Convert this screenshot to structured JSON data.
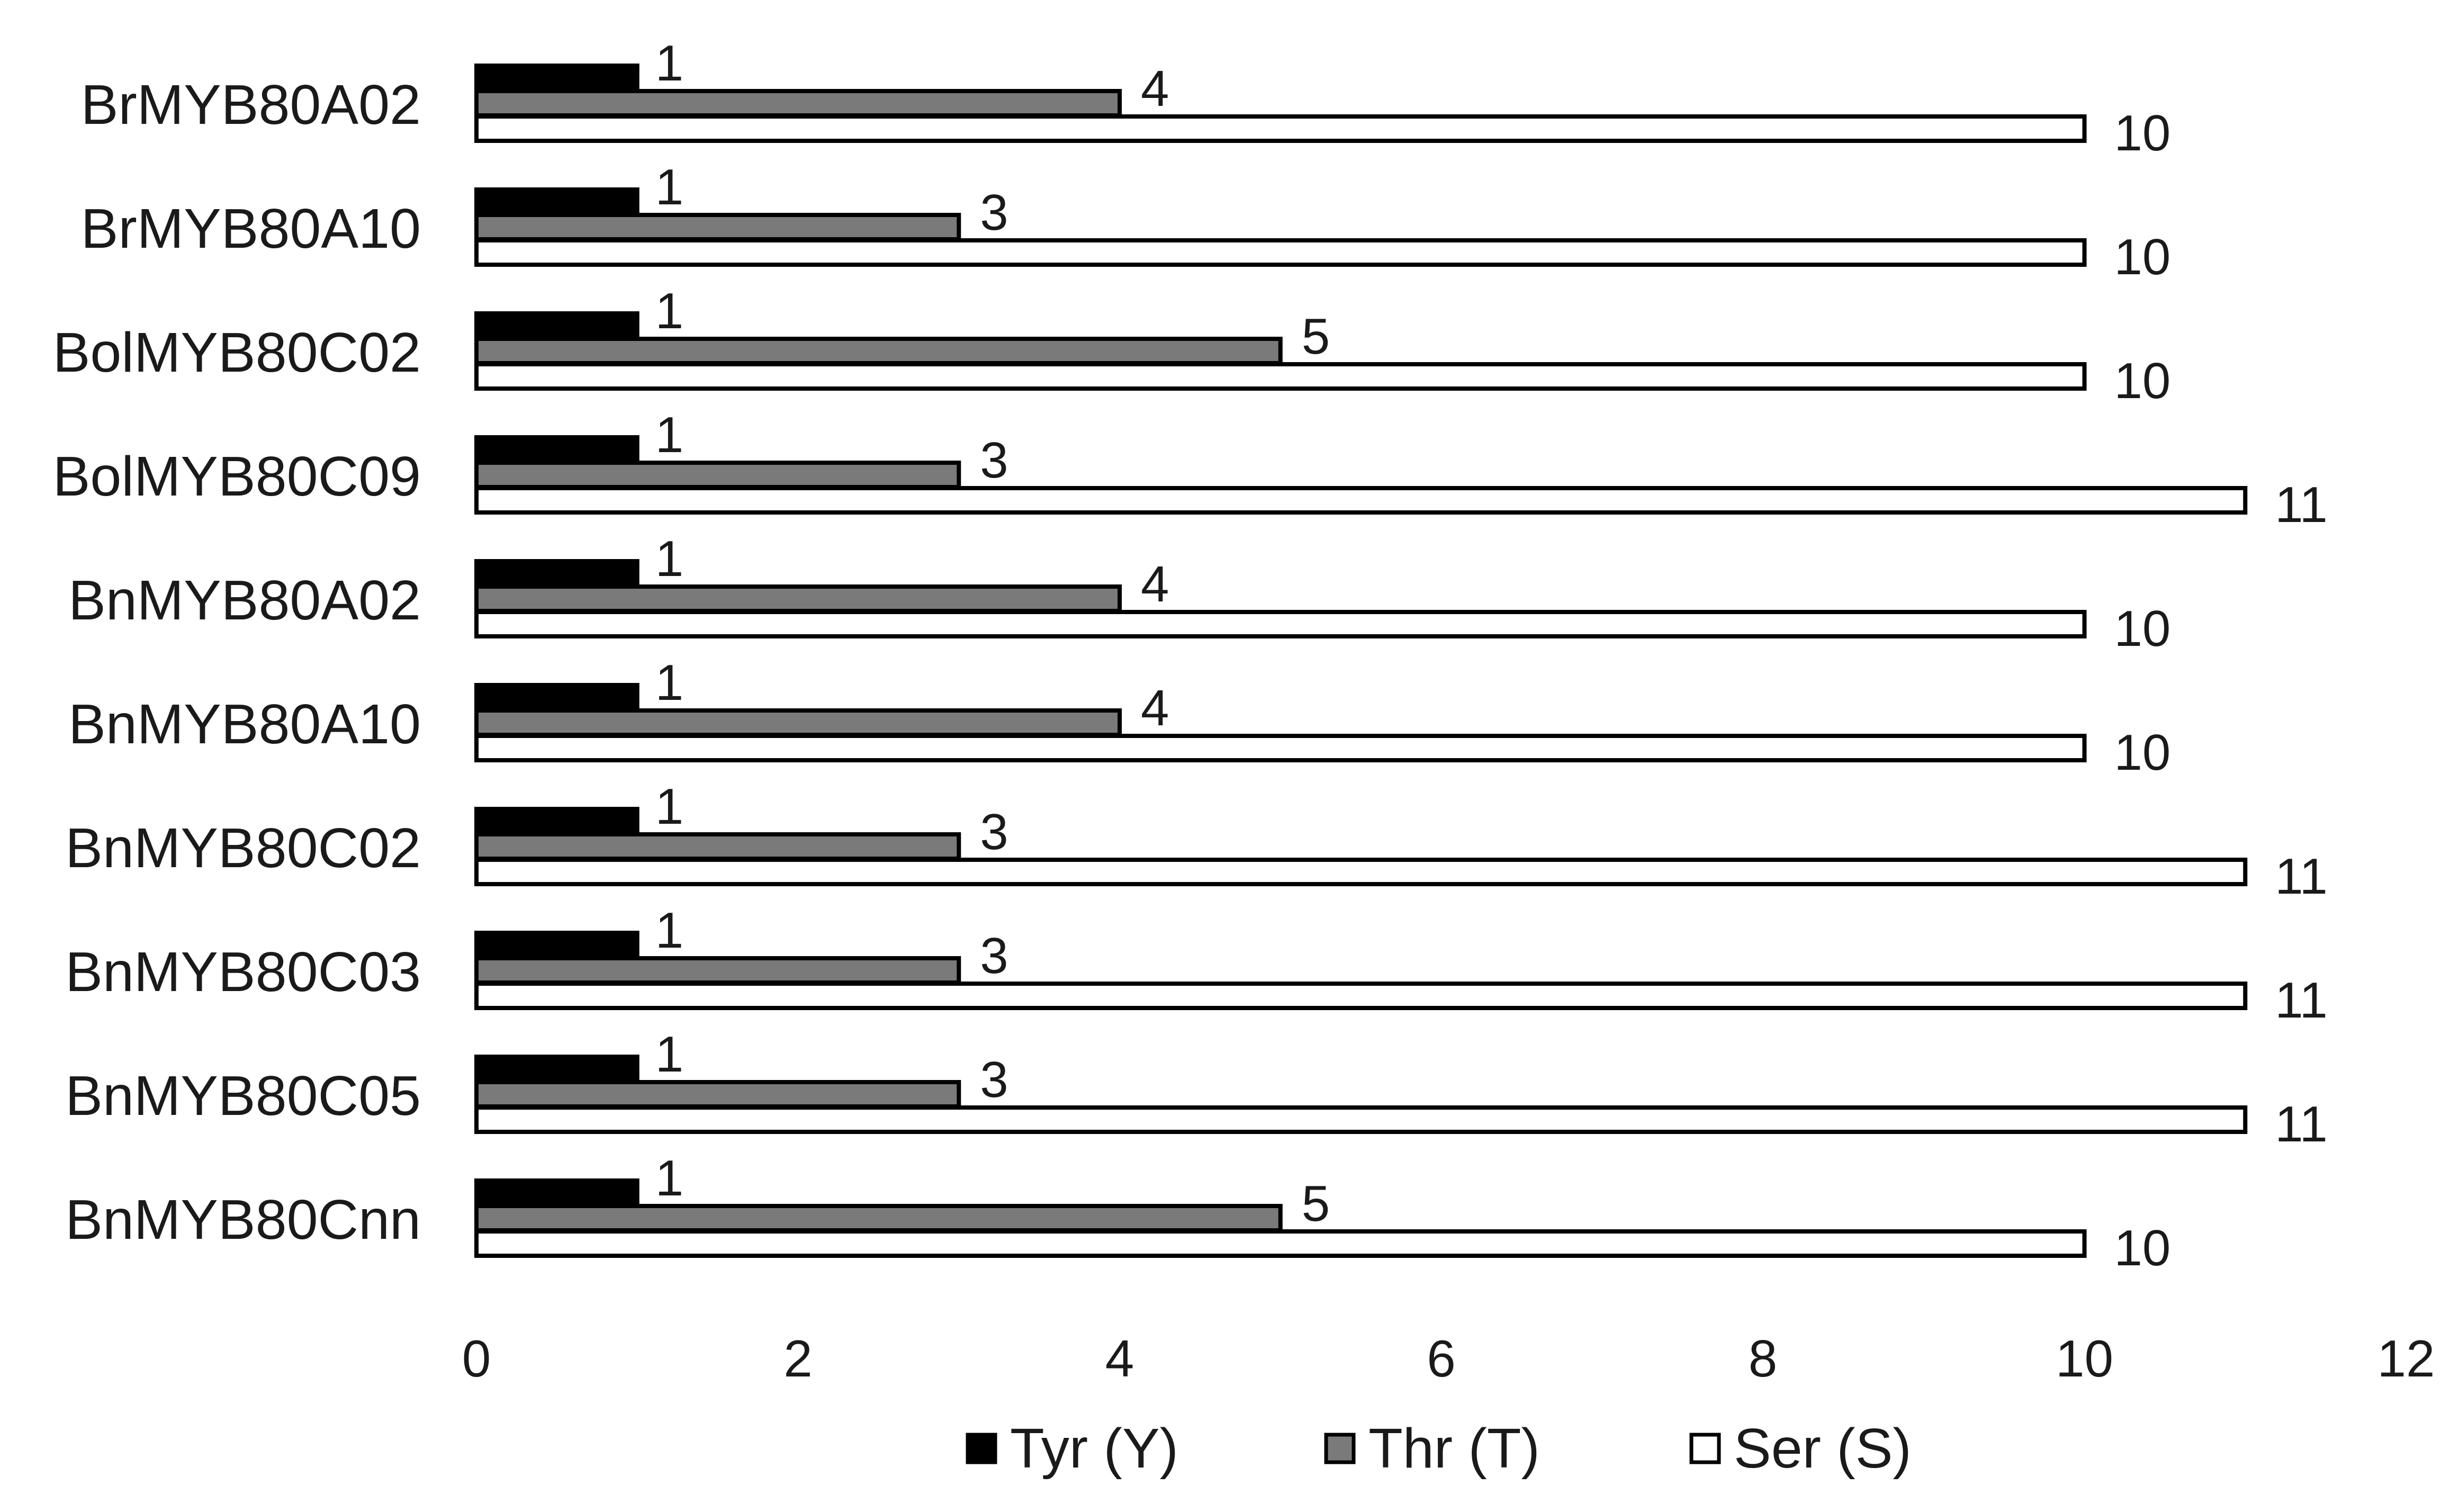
{
  "chart_data": {
    "type": "bar",
    "orientation": "horizontal",
    "title": "",
    "xlabel": "",
    "ylabel": "",
    "xlim": [
      0,
      12
    ],
    "x_ticks": [
      0,
      2,
      4,
      6,
      8,
      10,
      12
    ],
    "grid": false,
    "legend_position": "bottom",
    "categories": [
      "BrMYB80A02",
      "BrMYB80A10",
      "BolMYB80C02",
      "BolMYB80C09",
      "BnMYB80A02",
      "BnMYB80A10",
      "BnMYB80C02",
      "BnMYB80C03",
      "BnMYB80C05",
      "BnMYB80Cnn"
    ],
    "series": [
      {
        "name": "Tyr (Y)",
        "color": "#000000",
        "values": [
          1,
          1,
          1,
          1,
          1,
          1,
          1,
          1,
          1,
          1
        ]
      },
      {
        "name": "Thr (T)",
        "color": "#7a7a7a",
        "values": [
          4,
          3,
          5,
          3,
          4,
          4,
          3,
          3,
          3,
          5
        ]
      },
      {
        "name": "Ser (S)",
        "color": "#ffffff",
        "values": [
          10,
          10,
          10,
          11,
          10,
          10,
          11,
          11,
          11,
          10
        ]
      }
    ]
  }
}
